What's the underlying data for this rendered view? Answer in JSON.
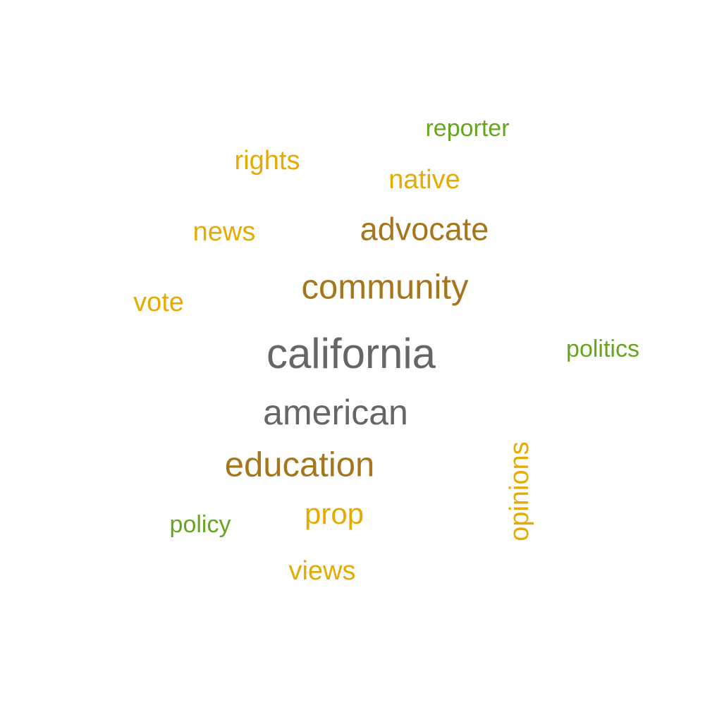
{
  "colors": {
    "gray": "#666666",
    "brown": "#a6761d",
    "gold": "#e6ab02",
    "green": "#66a61e"
  },
  "words": {
    "california": {
      "text": "california",
      "color": "#666666"
    },
    "american": {
      "text": "american",
      "color": "#666666"
    },
    "community": {
      "text": "community",
      "color": "#a6761d"
    },
    "education": {
      "text": "education",
      "color": "#a6761d"
    },
    "advocate": {
      "text": "advocate",
      "color": "#a6761d"
    },
    "prop": {
      "text": "prop",
      "color": "#e6ab02"
    },
    "native": {
      "text": "native",
      "color": "#e6ab02"
    },
    "rights": {
      "text": "rights",
      "color": "#e6ab02"
    },
    "news": {
      "text": "news",
      "color": "#e6ab02"
    },
    "vote": {
      "text": "vote",
      "color": "#e6ab02"
    },
    "views": {
      "text": "views",
      "color": "#e6ab02"
    },
    "opinions": {
      "text": "opinions",
      "color": "#e6ab02"
    },
    "reporter": {
      "text": "reporter",
      "color": "#66a61e"
    },
    "politics": {
      "text": "politics",
      "color": "#66a61e"
    },
    "policy": {
      "text": "policy",
      "color": "#66a61e"
    }
  }
}
